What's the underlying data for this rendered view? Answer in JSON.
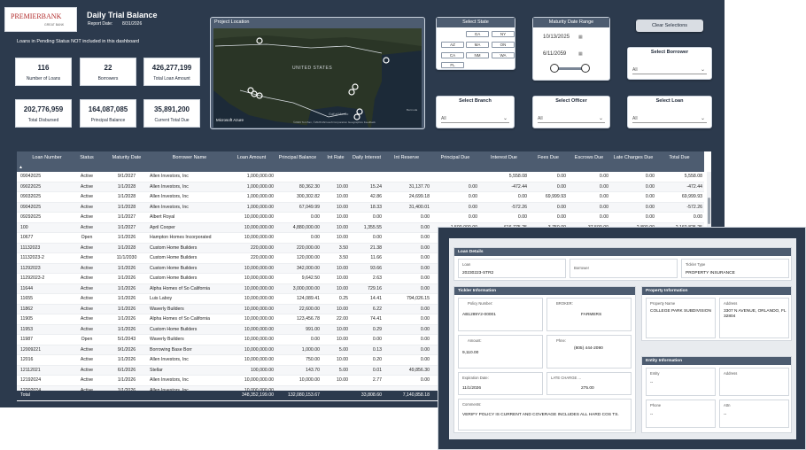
{
  "header": {
    "brand": "PREMIERBANK",
    "brand_sub": "GREAT BANK",
    "title": "Daily Trial Balance",
    "report_date_label": "Report Date:",
    "report_date": "8/31/2026",
    "note": "Loans in Pending Status NOT included in this dashboard"
  },
  "kpis": [
    {
      "value": "116",
      "label": "Number of Loans"
    },
    {
      "value": "22",
      "label": "Borrowers"
    },
    {
      "value": "426,277,199",
      "label": "Total Loan Amount"
    },
    {
      "value": "202,776,959",
      "label": "Total Disbursed"
    },
    {
      "value": "164,087,085",
      "label": "Principal Balance"
    },
    {
      "value": "35,891,200",
      "label": "Current Total Due"
    }
  ],
  "map": {
    "title": "Project Location",
    "country_label": "UNITED STATES",
    "gulf_label": "Gulf of Mexico",
    "provider": "Microsoft Azure",
    "copyright": "©2026 TomTom, ©2026 Microsoft Corporation Geographics Feedback",
    "scale": "Bermuda"
  },
  "filters": {
    "state_title": "Select State",
    "states": [
      "GA",
      "NY",
      "AZ",
      "MA",
      "ON",
      "CA",
      "NM",
      "WA",
      "FL"
    ],
    "maturity_title": "Maturity Date Range",
    "date_from": "10/13/2025",
    "date_to": "6/11/2059",
    "clear_label": "Clear Selections",
    "borrower_title": "Select Borrower",
    "branch_title": "Select Branch",
    "officer_title": "Select Officer",
    "loan_title": "Select Loan",
    "all_label": "All"
  },
  "colors": {
    "navy": "#2c3a4d",
    "header_slate": "#4d5c70",
    "brand_red": "#b12a2a"
  },
  "table": {
    "columns": [
      "Loan Number",
      "Status",
      "Maturity Date",
      "Borrower Name",
      "Loan Amount",
      "Principal Balance",
      "Int Rate",
      "Daily Interest",
      "Int Reserve",
      "Principal Due",
      "Interest Due",
      "Fees Due",
      "Escrows Due",
      "Late Charges Due",
      "Total Due"
    ],
    "rows": [
      [
        "09042025",
        "Active",
        "9/1/2027",
        "Allen Investors, Inc",
        "1,000,000.00",
        "",
        "",
        "",
        "",
        "",
        "5,558.08",
        "0.00",
        "0.00",
        "0.00",
        "5,558.08"
      ],
      [
        "09022025",
        "Active",
        "1/1/2028",
        "Allen Investors, Inc",
        "1,000,000.00",
        "80,362.30",
        "10.00",
        "15.24",
        "31,137.70",
        "0.00",
        "-472.44",
        "0.00",
        "0.00",
        "0.00",
        "-472.44"
      ],
      [
        "09032025",
        "Active",
        "1/1/2028",
        "Allen Investors, Inc",
        "1,000,000.00",
        "300,302.82",
        "10.00",
        "42.86",
        "24,699.18",
        "0.00",
        "0.00",
        "69,999.93",
        "0.00",
        "0.00",
        "69,999.93"
      ],
      [
        "09042025",
        "Active",
        "1/1/2028",
        "Allen Investors, Inc",
        "1,000,000.00",
        "67,049.99",
        "10.00",
        "18.33",
        "31,400.01",
        "0.00",
        "-572.26",
        "0.00",
        "0.00",
        "0.00",
        "-572.26"
      ],
      [
        "09292025",
        "Active",
        "1/1/2027",
        "Albert Royal",
        "10,000,000.00",
        "0.00",
        "10.00",
        "0.00",
        "0.00",
        "0.00",
        "0.00",
        "0.00",
        "0.00",
        "0.00",
        "0.00"
      ],
      [
        "100",
        "Active",
        "1/1/2027",
        "April Cooper",
        "10,000,000.00",
        "4,880,000.00",
        "10.00",
        "1,355.55",
        "0.00",
        "1,500,000.00",
        "616,775.25",
        "3,750.00",
        "37,500.00",
        "2,800.00",
        "2,160,825.25"
      ],
      [
        "10677",
        "Open",
        "1/1/2026",
        "Hampton Homes Incorporated",
        "10,000,000.00",
        "0.00",
        "10.00",
        "0.00",
        "0.00",
        "0.00",
        "0.00",
        "0.00",
        "0.00",
        "0.00",
        "0.00"
      ],
      [
        "11132023",
        "Active",
        "1/1/2028",
        "Custom Home Builders",
        "220,000.00",
        "220,000.00",
        "3.50",
        "21.38",
        "0.00",
        "0.00",
        "0.00",
        "0.00",
        "0.00",
        "0.00",
        "0.00"
      ],
      [
        "11132023-2",
        "Active",
        "11/1/2030",
        "Custom Home Builders",
        "220,000.00",
        "120,000.00",
        "3.50",
        "11.66",
        "0.00",
        "0.00",
        "0.00",
        "0.00",
        "0.00",
        "0.00",
        "0.00"
      ],
      [
        "11292023",
        "Active",
        "1/1/2026",
        "Custom Home Builders",
        "10,000,000.00",
        "342,000.00",
        "10.00",
        "93.66",
        "0.00",
        "0.00",
        "0.00",
        "0.00",
        "0.00",
        "0.00",
        "0.00"
      ],
      [
        "11292023-2",
        "Active",
        "1/1/2026",
        "Custom Home Builders",
        "10,000,000.00",
        "9,642.50",
        "10.00",
        "2.63",
        "0.00",
        "0.00",
        "0.00",
        "0.00",
        "0.00",
        "0.00",
        "0.00"
      ],
      [
        "11644",
        "Active",
        "1/1/2026",
        "Alpha Homes of So California",
        "10,000,000.00",
        "3,000,000.00",
        "10.00",
        "729.16",
        "0.00",
        "0.00",
        "0.00",
        "0.00",
        "0.00",
        "0.00",
        "0.00"
      ],
      [
        "11655",
        "Active",
        "1/1/2026",
        "Luis Laboy",
        "10,000,000.00",
        "124,089.41",
        "0.25",
        "14.41",
        "794,026.15",
        "0.00",
        "0.00",
        "0.00",
        "0.00",
        "0.00",
        "0.00"
      ],
      [
        "11862",
        "Active",
        "1/1/2026",
        "Waverly Builders",
        "10,000,000.00",
        "22,600.00",
        "10.00",
        "6.22",
        "0.00",
        "0.00",
        "0.00",
        "0.00",
        "0.00",
        "0.00",
        "0.00"
      ],
      [
        "11905",
        "Active",
        "1/1/2026",
        "Alpha Homes of So California",
        "10,000,000.00",
        "123,456.78",
        "22.00",
        "74.41",
        "0.00",
        "0.00",
        "0.00",
        "0.00",
        "0.00",
        "0.00",
        "0.00"
      ],
      [
        "11953",
        "Active",
        "1/1/2026",
        "Custom Home Builders",
        "10,000,000.00",
        "991.00",
        "10.00",
        "0.29",
        "0.00",
        "0.00",
        "0.00",
        "0.00",
        "0.00",
        "0.00",
        "0.00"
      ],
      [
        "11987",
        "Open",
        "5/1/2043",
        "Waverly Builders",
        "10,000,000.00",
        "0.00",
        "10.00",
        "0.00",
        "0.00",
        "0.00",
        "0.00",
        "0.00",
        "0.00",
        "0.00",
        "0.00"
      ],
      [
        "12009221",
        "Active",
        "9/1/2026",
        "Borrowing Base Borr",
        "10,000,000.00",
        "1,000.00",
        "5.00",
        "0.13",
        "0.00",
        "0.00",
        "0.00",
        "0.00",
        "0.00",
        "0.00",
        "0.00"
      ],
      [
        "12016",
        "Active",
        "1/1/2026",
        "Allen Investors, Inc",
        "10,000,000.00",
        "750.00",
        "10.00",
        "0.20",
        "0.00",
        "0.00",
        "0.00",
        "0.00",
        "0.00",
        "0.00",
        "0.00"
      ],
      [
        "12112021",
        "Active",
        "6/1/2026",
        "Stellar",
        "100,000.00",
        "143.70",
        "5.00",
        "0.01",
        "49,856.30",
        "0.00",
        "0.00",
        "0.00",
        "0.00",
        "0.00",
        "0.00"
      ],
      [
        "12192024",
        "Active",
        "1/1/2026",
        "Allen Investors, Inc",
        "10,000,000.00",
        "10,000.00",
        "10.00",
        "2.77",
        "0.00",
        "0.00",
        "0.00",
        "0.00",
        "0.00",
        "0.00",
        "0.00"
      ],
      [
        "12202024",
        "Active",
        "1/1/2026",
        "Allen Investors, Inc",
        "10,000,000.00",
        "",
        "",
        "",
        "",
        "",
        "",
        "",
        "",
        "",
        ""
      ]
    ],
    "total": [
      "Total",
      "",
      "",
      "",
      "348,352,199.00",
      "132,080,153.67",
      "",
      "33,808.60",
      "7,140,858.18",
      "",
      "",
      "",
      "",
      "",
      ""
    ]
  },
  "detail": {
    "loan_details_title": "Loan Details",
    "loan_label": "Loan",
    "loan_value": "20230223-STR2",
    "borrower_label": "Borrower",
    "borrower_value": "",
    "tickler_type_label": "Tickler Type",
    "tickler_type_value": "PROPERTY INSURANCE",
    "tickler_info_title": "Tickler Information",
    "policy_label": "Policy Number:",
    "policy_value": "AB1289Y2-00001",
    "broker_label": "BROKER:",
    "broker_value": "FARMERS",
    "amount_label": "Amount:",
    "amount_value": "9,110.00",
    "phone_label": "Phne:",
    "phone_value": "(805) 444-2090",
    "expiration_label": "Expiration Date:",
    "expiration_value": "11/1/2026",
    "late_label": "LATE CHARGE ...",
    "late_value": "275.00",
    "comments_label": "Comments:",
    "comments_value": "VERIFY POLICY IS CURRENT AND COVERAGE INCLUDES ALL HARD COS TS.",
    "property_info_title": "Property Information",
    "property_name_label": "Property Name",
    "property_name_value": "COLLEGE PARK SUBDIVISION",
    "address_label": "Address",
    "address_value": "3307 N AVENUE, ORLANDO, FL 32804",
    "entity_info_title": "Entity Information",
    "entity_label": "Entity",
    "entity_value": "--",
    "entity_address_label": "Address",
    "entity_address_value": "",
    "phone2_label": "Phone",
    "phone2_value": "--",
    "attn_label": "Attn",
    "attn_value": "--"
  }
}
